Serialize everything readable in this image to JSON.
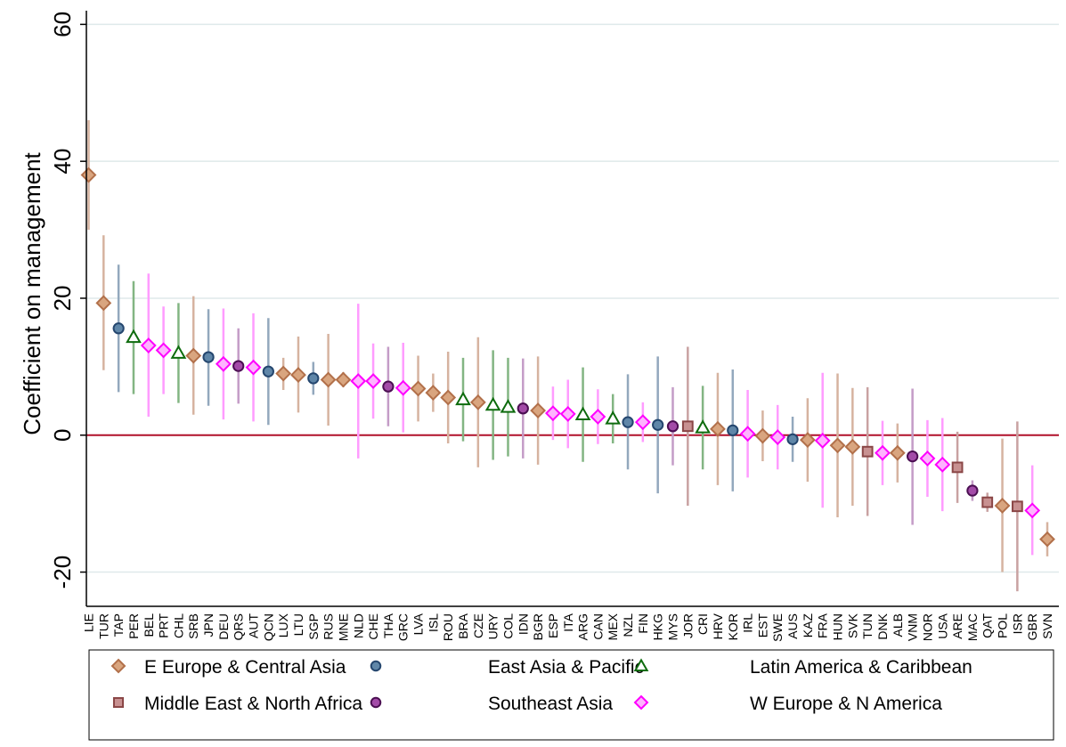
{
  "chart_data": {
    "type": "scatter",
    "title": "",
    "xlabel": "",
    "ylabel": "Coefficient on management",
    "ylim": [
      -25,
      62
    ],
    "yticks": [
      -20,
      0,
      20,
      40,
      60
    ],
    "grid": true,
    "reference_line": 0,
    "legend_position": "bottom",
    "colors": {
      "reference_line": "#b0102a",
      "grid": "#dfe9ea"
    },
    "groups": [
      {
        "key": "ECA",
        "name": "E Europe & Central Asia",
        "marker": "diamond",
        "color": "#b2704a",
        "fill": "#d9a57f",
        "ci_color": "#d6b3a0"
      },
      {
        "key": "EAP",
        "name": "East Asia & Pacific",
        "marker": "circle",
        "color": "#24466e",
        "fill": "#5f86a8",
        "ci_color": "#93a8bd"
      },
      {
        "key": "LAC",
        "name": "Latin America & Caribbean",
        "marker": "triangle",
        "color": "#0d6b0d",
        "fill": "#ffffff",
        "ci_color": "#83b583"
      },
      {
        "key": "MENA",
        "name": "Middle East & North Africa",
        "marker": "square",
        "color": "#8a4646",
        "fill": "#c89191",
        "ci_color": "#c9a2a2"
      },
      {
        "key": "SEA",
        "name": "Southeast Asia",
        "marker": "circle",
        "color": "#4b0f52",
        "fill": "#a34ba8",
        "ci_color": "#c49cc7"
      },
      {
        "key": "WENA",
        "name": "W Europe & N America",
        "marker": "diamond",
        "color": "#ff00ff",
        "fill": "#ffb3ff",
        "ci_color": "#ff9cff"
      }
    ],
    "points": [
      {
        "label": "LIE",
        "group": "ECA",
        "y": 38,
        "lo": 30,
        "hi": 46
      },
      {
        "label": "TUR",
        "group": "ECA",
        "y": 19.3,
        "lo": 9.5,
        "hi": 29.2
      },
      {
        "label": "TAP",
        "group": "EAP",
        "y": 15.6,
        "lo": 6.3,
        "hi": 24.9
      },
      {
        "label": "PER",
        "group": "LAC",
        "y": 14.3,
        "lo": 6,
        "hi": 22.5
      },
      {
        "label": "BEL",
        "group": "WENA",
        "y": 13.1,
        "lo": 2.7,
        "hi": 23.6
      },
      {
        "label": "PRT",
        "group": "WENA",
        "y": 12.4,
        "lo": 6,
        "hi": 18.8
      },
      {
        "label": "CHL",
        "group": "LAC",
        "y": 12,
        "lo": 4.7,
        "hi": 19.3
      },
      {
        "label": "SRB",
        "group": "ECA",
        "y": 11.6,
        "lo": 3,
        "hi": 20.3
      },
      {
        "label": "JPN",
        "group": "EAP",
        "y": 11.4,
        "lo": 4.3,
        "hi": 18.4
      },
      {
        "label": "DEU",
        "group": "WENA",
        "y": 10.4,
        "lo": 2.3,
        "hi": 18.5
      },
      {
        "label": "QRS",
        "group": "SEA",
        "y": 10.1,
        "lo": 4.6,
        "hi": 15.6
      },
      {
        "label": "AUT",
        "group": "WENA",
        "y": 9.9,
        "lo": 2,
        "hi": 17.8
      },
      {
        "label": "QCN",
        "group": "EAP",
        "y": 9.3,
        "lo": 1.5,
        "hi": 17.1
      },
      {
        "label": "LUX",
        "group": "ECA",
        "y": 9,
        "lo": 6.6,
        "hi": 11.3
      },
      {
        "label": "LTU",
        "group": "ECA",
        "y": 8.8,
        "lo": 3.3,
        "hi": 14.4
      },
      {
        "label": "SGP",
        "group": "EAP",
        "y": 8.3,
        "lo": 5.9,
        "hi": 10.7
      },
      {
        "label": "RUS",
        "group": "ECA",
        "y": 8.1,
        "lo": 1.4,
        "hi": 14.8
      },
      {
        "label": "MNE",
        "group": "ECA",
        "y": 8.1,
        "lo": 7,
        "hi": 9.2
      },
      {
        "label": "NLD",
        "group": "WENA",
        "y": 7.9,
        "lo": -3.4,
        "hi": 19.2
      },
      {
        "label": "CHE",
        "group": "WENA",
        "y": 7.9,
        "lo": 2.4,
        "hi": 13.4
      },
      {
        "label": "THA",
        "group": "SEA",
        "y": 7.1,
        "lo": 1.3,
        "hi": 12.9
      },
      {
        "label": "GRC",
        "group": "WENA",
        "y": 6.9,
        "lo": 0.4,
        "hi": 13.5
      },
      {
        "label": "LVA",
        "group": "ECA",
        "y": 6.8,
        "lo": 2,
        "hi": 11.6
      },
      {
        "label": "ISL",
        "group": "ECA",
        "y": 6.2,
        "lo": 3.4,
        "hi": 9
      },
      {
        "label": "ROU",
        "group": "ECA",
        "y": 5.5,
        "lo": -1.2,
        "hi": 12.2
      },
      {
        "label": "BRA",
        "group": "LAC",
        "y": 5.2,
        "lo": -0.9,
        "hi": 11.3
      },
      {
        "label": "CZE",
        "group": "ECA",
        "y": 4.8,
        "lo": -4.7,
        "hi": 14.3
      },
      {
        "label": "URY",
        "group": "LAC",
        "y": 4.4,
        "lo": -3.6,
        "hi": 12.4
      },
      {
        "label": "COL",
        "group": "LAC",
        "y": 4.1,
        "lo": -3.1,
        "hi": 11.3
      },
      {
        "label": "IDN",
        "group": "SEA",
        "y": 3.9,
        "lo": -3.4,
        "hi": 11.2
      },
      {
        "label": "BGR",
        "group": "ECA",
        "y": 3.6,
        "lo": -4.3,
        "hi": 11.5
      },
      {
        "label": "ESP",
        "group": "WENA",
        "y": 3.2,
        "lo": -0.7,
        "hi": 7.1
      },
      {
        "label": "ITA",
        "group": "WENA",
        "y": 3.1,
        "lo": -1.9,
        "hi": 8.1
      },
      {
        "label": "ARG",
        "group": "LAC",
        "y": 3,
        "lo": -3.9,
        "hi": 9.9
      },
      {
        "label": "CAN",
        "group": "WENA",
        "y": 2.7,
        "lo": -1.3,
        "hi": 6.7
      },
      {
        "label": "MEX",
        "group": "LAC",
        "y": 2.4,
        "lo": -1.2,
        "hi": 6
      },
      {
        "label": "NZL",
        "group": "EAP",
        "y": 1.9,
        "lo": -5,
        "hi": 8.9
      },
      {
        "label": "FIN",
        "group": "WENA",
        "y": 1.9,
        "lo": -1,
        "hi": 4.8
      },
      {
        "label": "HKG",
        "group": "EAP",
        "y": 1.5,
        "lo": -8.5,
        "hi": 11.5
      },
      {
        "label": "MYS",
        "group": "SEA",
        "y": 1.3,
        "lo": -4.4,
        "hi": 7
      },
      {
        "label": "JOR",
        "group": "MENA",
        "y": 1.3,
        "lo": -10.3,
        "hi": 12.9
      },
      {
        "label": "CRI",
        "group": "LAC",
        "y": 1.1,
        "lo": -5,
        "hi": 7.2
      },
      {
        "label": "HRV",
        "group": "ECA",
        "y": 0.9,
        "lo": -7.3,
        "hi": 9.1
      },
      {
        "label": "KOR",
        "group": "EAP",
        "y": 0.7,
        "lo": -8.2,
        "hi": 9.6
      },
      {
        "label": "IRL",
        "group": "WENA",
        "y": 0.2,
        "lo": -6.2,
        "hi": 6.6
      },
      {
        "label": "EST",
        "group": "ECA",
        "y": -0.1,
        "lo": -3.8,
        "hi": 3.6
      },
      {
        "label": "SWE",
        "group": "WENA",
        "y": -0.3,
        "lo": -5,
        "hi": 4.4
      },
      {
        "label": "AUS",
        "group": "EAP",
        "y": -0.6,
        "lo": -3.9,
        "hi": 2.7
      },
      {
        "label": "KAZ",
        "group": "ECA",
        "y": -0.7,
        "lo": -6.8,
        "hi": 5.4
      },
      {
        "label": "FRA",
        "group": "WENA",
        "y": -0.8,
        "lo": -10.6,
        "hi": 9.1
      },
      {
        "label": "HUN",
        "group": "ECA",
        "y": -1.5,
        "lo": -12,
        "hi": 9
      },
      {
        "label": "SVK",
        "group": "ECA",
        "y": -1.7,
        "lo": -10.3,
        "hi": 6.9
      },
      {
        "label": "TUN",
        "group": "MENA",
        "y": -2.4,
        "lo": -11.8,
        "hi": 7
      },
      {
        "label": "DNK",
        "group": "WENA",
        "y": -2.6,
        "lo": -7.3,
        "hi": 2.1
      },
      {
        "label": "ALB",
        "group": "ECA",
        "y": -2.6,
        "lo": -6.9,
        "hi": 1.7
      },
      {
        "label": "VNM",
        "group": "SEA",
        "y": -3.1,
        "lo": -13.1,
        "hi": 6.8
      },
      {
        "label": "NOR",
        "group": "WENA",
        "y": -3.4,
        "lo": -9,
        "hi": 2.2
      },
      {
        "label": "USA",
        "group": "WENA",
        "y": -4.3,
        "lo": -11.1,
        "hi": 2.5
      },
      {
        "label": "ARE",
        "group": "MENA",
        "y": -4.7,
        "lo": -9.9,
        "hi": 0.5
      },
      {
        "label": "MAC",
        "group": "SEA",
        "y": -8.1,
        "lo": -9.6,
        "hi": -6.6
      },
      {
        "label": "QAT",
        "group": "MENA",
        "y": -9.8,
        "lo": -11.2,
        "hi": -8.4
      },
      {
        "label": "POL",
        "group": "ECA",
        "y": -10.3,
        "lo": -20,
        "hi": -0.5
      },
      {
        "label": "ISR",
        "group": "MENA",
        "y": -10.4,
        "lo": -22.8,
        "hi": 2
      },
      {
        "label": "GBR",
        "group": "WENA",
        "y": -11,
        "lo": -17.5,
        "hi": -4.4
      },
      {
        "label": "SVN",
        "group": "ECA",
        "y": -15.2,
        "lo": -17.7,
        "hi": -12.7
      }
    ]
  }
}
